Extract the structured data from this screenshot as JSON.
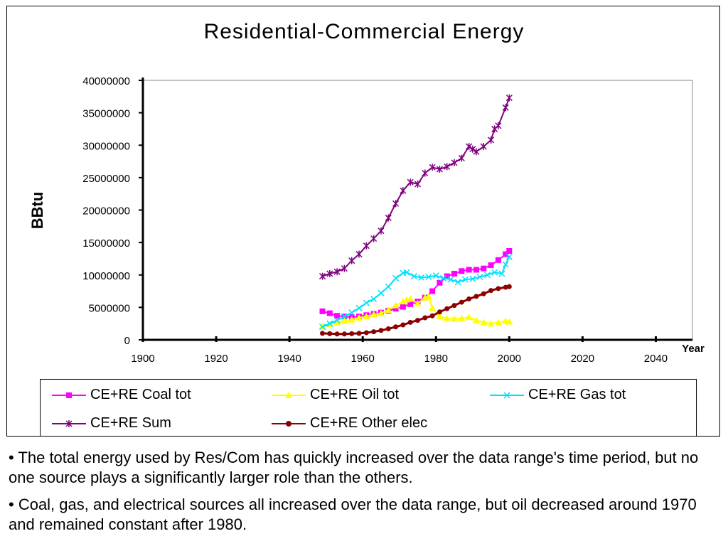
{
  "chart_data": {
    "type": "line",
    "title": "Residential-Commercial Energy",
    "xlabel": "Year",
    "ylabel": "BBtu",
    "xlim": [
      1900,
      2050
    ],
    "ylim": [
      0,
      40000000
    ],
    "xticks": [
      "1900",
      "1920",
      "1940",
      "1960",
      "1980",
      "2000",
      "2020",
      "2040"
    ],
    "yticks": [
      "0",
      "5000000",
      "10000000",
      "15000000",
      "20000000",
      "25000000",
      "30000000",
      "35000000",
      "40000000"
    ],
    "grid": false,
    "legend": "bottom",
    "series": [
      {
        "name": "CE+RE Coal tot",
        "color": "#ff00ff",
        "marker": "square",
        "x": [
          1949,
          1951,
          1953,
          1955,
          1957,
          1959,
          1961,
          1963,
          1965,
          1967,
          1969,
          1971,
          1973,
          1975,
          1977,
          1979,
          1981,
          1983,
          1985,
          1987,
          1989,
          1991,
          1993,
          1995,
          1997,
          1999,
          2000
        ],
        "y": [
          4400000,
          4100000,
          3700000,
          3600000,
          3500000,
          3600000,
          3800000,
          4000000,
          4200000,
          4500000,
          4800000,
          5100000,
          5500000,
          5900000,
          6500000,
          7500000,
          8800000,
          9800000,
          10200000,
          10600000,
          10800000,
          10800000,
          11000000,
          11500000,
          12300000,
          13200000,
          13700000
        ]
      },
      {
        "name": "CE+RE Oil tot",
        "color": "#ffff00",
        "marker": "triangle",
        "x": [
          1949,
          1951,
          1953,
          1955,
          1957,
          1959,
          1961,
          1963,
          1965,
          1967,
          1969,
          1971,
          1972,
          1973,
          1975,
          1977,
          1978,
          1979,
          1981,
          1983,
          1985,
          1987,
          1989,
          1991,
          1993,
          1995,
          1997,
          1999,
          2000
        ],
        "y": [
          2100000,
          2400000,
          2700000,
          2900000,
          3100000,
          3400000,
          3600000,
          3900000,
          4100000,
          4600000,
          5300000,
          5900000,
          6200000,
          6300000,
          5600000,
          6500000,
          6700000,
          4900000,
          3600000,
          3300000,
          3200000,
          3300000,
          3500000,
          3000000,
          2700000,
          2500000,
          2700000,
          2900000,
          2800000
        ]
      },
      {
        "name": "CE+RE Gas tot",
        "color": "#00e0ff",
        "marker": "x",
        "x": [
          1949,
          1951,
          1953,
          1955,
          1957,
          1959,
          1961,
          1963,
          1965,
          1967,
          1969,
          1971,
          1972,
          1974,
          1976,
          1978,
          1980,
          1982,
          1984,
          1986,
          1988,
          1990,
          1992,
          1994,
          1996,
          1998,
          1999,
          2000
        ],
        "y": [
          2000000,
          2500000,
          3000000,
          3600000,
          4200000,
          4900000,
          5700000,
          6300000,
          7200000,
          8200000,
          9500000,
          10300000,
          10400000,
          9800000,
          9600000,
          9700000,
          9900000,
          9500000,
          9300000,
          8900000,
          9300000,
          9400000,
          9700000,
          10000000,
          10400000,
          10200000,
          11600000,
          12800000
        ]
      },
      {
        "name": "CE+RE Sum",
        "color": "#800080",
        "marker": "star",
        "x": [
          1949,
          1951,
          1953,
          1955,
          1957,
          1959,
          1961,
          1963,
          1965,
          1967,
          1969,
          1971,
          1973,
          1975,
          1977,
          1979,
          1981,
          1983,
          1985,
          1987,
          1989,
          1990,
          1991,
          1993,
          1995,
          1996,
          1997,
          1999,
          2000
        ],
        "y": [
          9800000,
          10200000,
          10500000,
          11000000,
          12200000,
          13200000,
          14500000,
          15600000,
          16800000,
          18800000,
          21000000,
          23000000,
          24300000,
          24000000,
          25700000,
          26600000,
          26300000,
          26700000,
          27300000,
          28000000,
          29800000,
          29400000,
          29000000,
          29800000,
          30800000,
          32500000,
          33000000,
          35800000,
          37300000
        ]
      },
      {
        "name": "CE+RE Other elec",
        "color": "#8b0000",
        "marker": "circle",
        "x": [
          1949,
          1951,
          1953,
          1955,
          1957,
          1959,
          1961,
          1963,
          1965,
          1967,
          1969,
          1971,
          1973,
          1975,
          1977,
          1979,
          1981,
          1983,
          1985,
          1987,
          1989,
          1991,
          1993,
          1995,
          1997,
          1999,
          2000
        ],
        "y": [
          1000000,
          950000,
          900000,
          900000,
          950000,
          1000000,
          1100000,
          1250000,
          1450000,
          1700000,
          2000000,
          2300000,
          2700000,
          3000000,
          3400000,
          3700000,
          4300000,
          4800000,
          5300000,
          5800000,
          6300000,
          6700000,
          7100000,
          7600000,
          7900000,
          8100000,
          8200000
        ]
      }
    ]
  },
  "notes": [
    "• The total energy used by Res/Com has quickly increased over the data range's time period, but no one source plays a significantly larger role than the others.",
    "• Coal, gas, and electrical sources all increased over the data range, but oil decreased around 1970 and remained constant after 1980."
  ]
}
